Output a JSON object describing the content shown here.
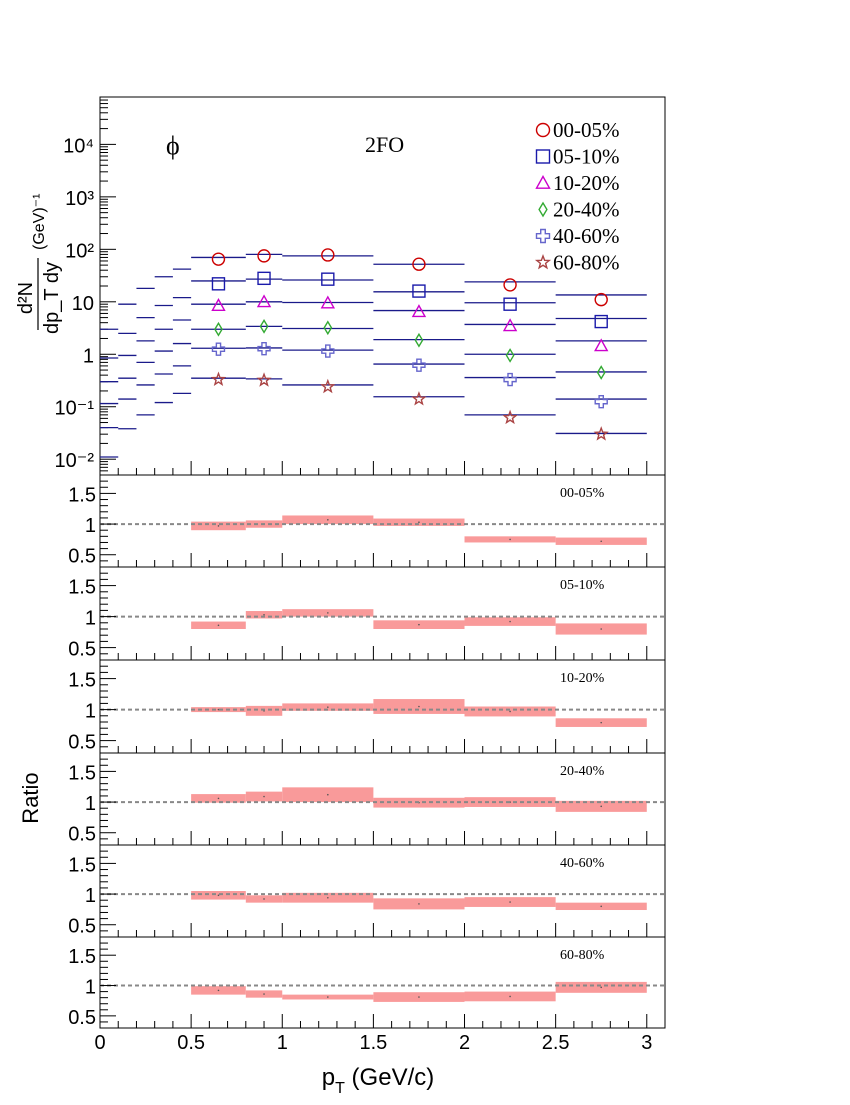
{
  "chart_data": [
    {
      "type": "scatter",
      "panel": "spectra",
      "particle_label": "ϕ",
      "model_label": "2FO",
      "xlabel": "p_T (GeV/c)",
      "ylabel": "d²N/dp_T dy (GeV)⁻¹",
      "xlim": [
        0,
        3.1
      ],
      "ylim": [
        0.005,
        80000
      ],
      "yscale": "log",
      "y_tick_labels": [
        "10⁻²",
        "10⁻¹",
        "1",
        "10",
        "10²",
        "10³",
        "10⁴"
      ],
      "legend_placement": "top-right",
      "data_x": [
        0.65,
        0.9,
        1.25,
        1.75,
        2.25,
        2.75
      ],
      "series": [
        {
          "name": "00-05%",
          "marker": "circle",
          "color": "#cc0000",
          "values": [
            65,
            75,
            78,
            52,
            21,
            11
          ]
        },
        {
          "name": "05-10%",
          "marker": "square",
          "color": "#1a1aaa",
          "values": [
            22,
            28,
            27,
            16,
            9,
            4.2
          ]
        },
        {
          "name": "10-20%",
          "marker": "triangle",
          "color": "#cc00cc",
          "values": [
            8.5,
            10,
            9.5,
            6.5,
            3.5,
            1.45
          ]
        },
        {
          "name": "20-40%",
          "marker": "diamond",
          "color": "#33aa33",
          "values": [
            3,
            3.4,
            3.2,
            1.85,
            0.95,
            0.45
          ]
        },
        {
          "name": "40-60%",
          "marker": "cross",
          "color": "#6666cc",
          "values": [
            1.25,
            1.28,
            1.15,
            0.62,
            0.33,
            0.125
          ]
        },
        {
          "name": "60-80%",
          "marker": "star",
          "color": "#aa4444",
          "values": [
            0.33,
            0.32,
            0.24,
            0.14,
            0.062,
            0.03
          ]
        }
      ],
      "model_steps": [
        {
          "x0": 0.0,
          "x1": 0.1,
          "values": [
            3,
            0.85,
            0.3,
            0.115,
            0.04,
            0.011
          ]
        },
        {
          "x0": 0.1,
          "x1": 0.2,
          "values": [
            9,
            2.5,
            0.95,
            0.35,
            0.14,
            0.038
          ]
        },
        {
          "x0": 0.2,
          "x1": 0.3,
          "values": [
            18,
            5,
            1.8,
            0.7,
            0.26,
            0.07
          ]
        },
        {
          "x0": 0.3,
          "x1": 0.4,
          "values": [
            30,
            8.5,
            3,
            1.15,
            0.42,
            0.12
          ]
        },
        {
          "x0": 0.4,
          "x1": 0.5,
          "values": [
            42,
            12,
            4.5,
            1.6,
            0.6,
            0.18
          ]
        },
        {
          "x0": 0.5,
          "x1": 0.8,
          "values": [
            70,
            25,
            9,
            3,
            1.3,
            0.35
          ]
        },
        {
          "x0": 0.8,
          "x1": 1.0,
          "values": [
            80,
            27,
            10,
            3.4,
            1.32,
            0.34
          ]
        },
        {
          "x0": 1.0,
          "x1": 1.5,
          "values": [
            75,
            26,
            9.7,
            3.1,
            1.2,
            0.26
          ]
        },
        {
          "x0": 1.5,
          "x1": 2.0,
          "values": [
            52,
            15.5,
            6.8,
            1.9,
            0.65,
            0.155
          ]
        },
        {
          "x0": 2.0,
          "x1": 2.5,
          "values": [
            24,
            9.6,
            3.7,
            1.0,
            0.36,
            0.07
          ]
        },
        {
          "x0": 2.5,
          "x1": 3.0,
          "values": [
            13.5,
            4.8,
            1.8,
            0.46,
            0.14,
            0.031
          ]
        }
      ]
    },
    {
      "type": "bar",
      "panel": "ratios",
      "ylabel": "Ratio",
      "xlabel": "p_T (GeV/c)",
      "xlim": [
        0,
        3.1
      ],
      "ylim": [
        0.3,
        1.8
      ],
      "x_tick_labels": [
        "0",
        "0.5",
        "1",
        "1.5",
        "2",
        "2.5",
        "3"
      ],
      "y_tick_labels": [
        "0.5",
        "1",
        "1.5"
      ],
      "reference_line": 1,
      "band_color": "#f99a9a",
      "bins": [
        [
          0.5,
          0.8
        ],
        [
          0.8,
          1.0
        ],
        [
          1.0,
          1.5
        ],
        [
          1.5,
          2.0
        ],
        [
          2.0,
          2.5
        ],
        [
          2.5,
          3.0
        ]
      ],
      "panels": [
        {
          "label": "00-05%",
          "centers": [
            0.97,
            1.0,
            1.07,
            1.03,
            0.75,
            0.72
          ],
          "halfwidths": [
            0.07,
            0.06,
            0.07,
            0.06,
            0.05,
            0.06
          ]
        },
        {
          "label": "05-10%",
          "centers": [
            0.86,
            1.03,
            1.06,
            0.87,
            0.92,
            0.8
          ],
          "halfwidths": [
            0.06,
            0.06,
            0.06,
            0.07,
            0.07,
            0.09
          ]
        },
        {
          "label": "10-20%",
          "centers": [
            1.0,
            0.98,
            1.04,
            1.05,
            0.97,
            0.79
          ],
          "halfwidths": [
            0.04,
            0.08,
            0.06,
            0.12,
            0.08,
            0.07
          ]
        },
        {
          "label": "20-40%",
          "centers": [
            1.06,
            1.09,
            1.12,
            0.99,
            1.0,
            0.93
          ],
          "halfwidths": [
            0.07,
            0.08,
            0.12,
            0.08,
            0.08,
            0.09
          ]
        },
        {
          "label": "40-60%",
          "centers": [
            0.98,
            0.92,
            0.94,
            0.84,
            0.87,
            0.8
          ],
          "halfwidths": [
            0.07,
            0.06,
            0.08,
            0.09,
            0.08,
            0.06
          ]
        },
        {
          "label": "60-80%",
          "centers": [
            0.92,
            0.86,
            0.81,
            0.81,
            0.82,
            0.97
          ],
          "halfwidths": [
            0.07,
            0.06,
            0.04,
            0.08,
            0.08,
            0.09
          ]
        }
      ]
    }
  ]
}
